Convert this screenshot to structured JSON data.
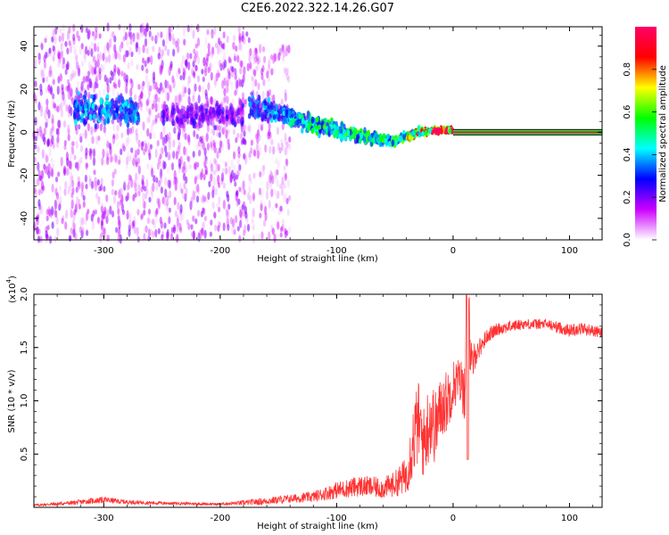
{
  "title": "C2E6.2022.322.14.26.G07",
  "chart_data": [
    {
      "type": "heatmap",
      "xlabel": "Height of straight line (km)",
      "ylabel": "Frequency (Hz)",
      "xlim": [
        -360,
        128
      ],
      "ylim": [
        -50,
        49
      ],
      "xticks": [
        -300,
        -200,
        -100,
        0,
        100
      ],
      "yticks": [
        -40,
        -20,
        0,
        20,
        40
      ],
      "colorbar": {
        "label": "Normalized spectral amplitude",
        "range": [
          0,
          1
        ],
        "ticks": [
          "0.0",
          "0.2",
          "0.4",
          "0.6",
          "0.8"
        ],
        "colors": [
          "#ffffff",
          "#cc00ff",
          "#0000ff",
          "#00ffff",
          "#00ff00",
          "#ffff00",
          "#ff0000",
          "#ff0066"
        ]
      },
      "features": [
        {
          "name": "noise",
          "x_range": [
            -360,
            -175
          ],
          "freq_range": [
            -50,
            49
          ],
          "amplitude": 0.1
        },
        {
          "name": "noise-tail",
          "x_range": [
            -175,
            -140
          ],
          "freq_range": [
            -50,
            40
          ],
          "amplitude": 0.08
        },
        {
          "name": "cluster",
          "x_range": [
            -325,
            -270
          ],
          "freq_center": 10,
          "freq_spread": 6,
          "amplitude": 0.25
        },
        {
          "name": "cluster",
          "x_range": [
            -250,
            -180
          ],
          "freq_center": 8,
          "freq_spread": 5,
          "amplitude": 0.15
        },
        {
          "name": "tone-trace",
          "x": [
            -175,
            -120,
            -80,
            -50,
            -30,
            -10,
            0,
            128
          ],
          "freq": [
            12,
            4,
            -2,
            -4,
            0,
            1,
            1,
            0
          ],
          "amplitude": [
            0.3,
            0.45,
            0.5,
            0.5,
            0.7,
            0.9,
            1.0,
            1.0
          ]
        }
      ]
    },
    {
      "type": "line",
      "xlabel": "Height of straight line (km)",
      "ylabel": "SNR (10 * v/v)",
      "multiplier_label": "(x10",
      "multiplier_exp": "4",
      "xlim": [
        -360,
        128
      ],
      "ylim": [
        0,
        2.0
      ],
      "xticks": [
        -300,
        -200,
        -100,
        0,
        100
      ],
      "yticks": [
        "0.5",
        "1.0",
        "1.5",
        "2.0"
      ],
      "series": [
        {
          "color": "#ff3333",
          "x": [
            -360,
            -330,
            -300,
            -280,
            -250,
            -200,
            -170,
            -140,
            -120,
            -100,
            -80,
            -60,
            -50,
            -40,
            -35,
            -30,
            -25,
            -20,
            -15,
            -10,
            -5,
            0,
            5,
            10,
            13,
            15,
            20,
            30,
            40,
            60,
            80,
            100,
            110,
            128
          ],
          "y": [
            0.02,
            0.04,
            0.07,
            0.05,
            0.04,
            0.03,
            0.05,
            0.08,
            0.1,
            0.16,
            0.2,
            0.18,
            0.22,
            0.3,
            0.6,
            0.8,
            0.6,
            0.85,
            0.75,
            0.95,
            1.0,
            1.15,
            1.2,
            1.1,
            1.9,
            1.3,
            1.45,
            1.62,
            1.68,
            1.72,
            1.72,
            1.66,
            1.68,
            1.64
          ],
          "noise": [
            0.01,
            0.02,
            0.03,
            0.02,
            0.015,
            0.01,
            0.03,
            0.04,
            0.05,
            0.08,
            0.1,
            0.1,
            0.12,
            0.18,
            0.35,
            0.4,
            0.35,
            0.4,
            0.35,
            0.3,
            0.3,
            0.25,
            0.2,
            0.3,
            0.15,
            0.25,
            0.1,
            0.07,
            0.06,
            0.05,
            0.05,
            0.06,
            0.06,
            0.05
          ]
        }
      ]
    }
  ]
}
